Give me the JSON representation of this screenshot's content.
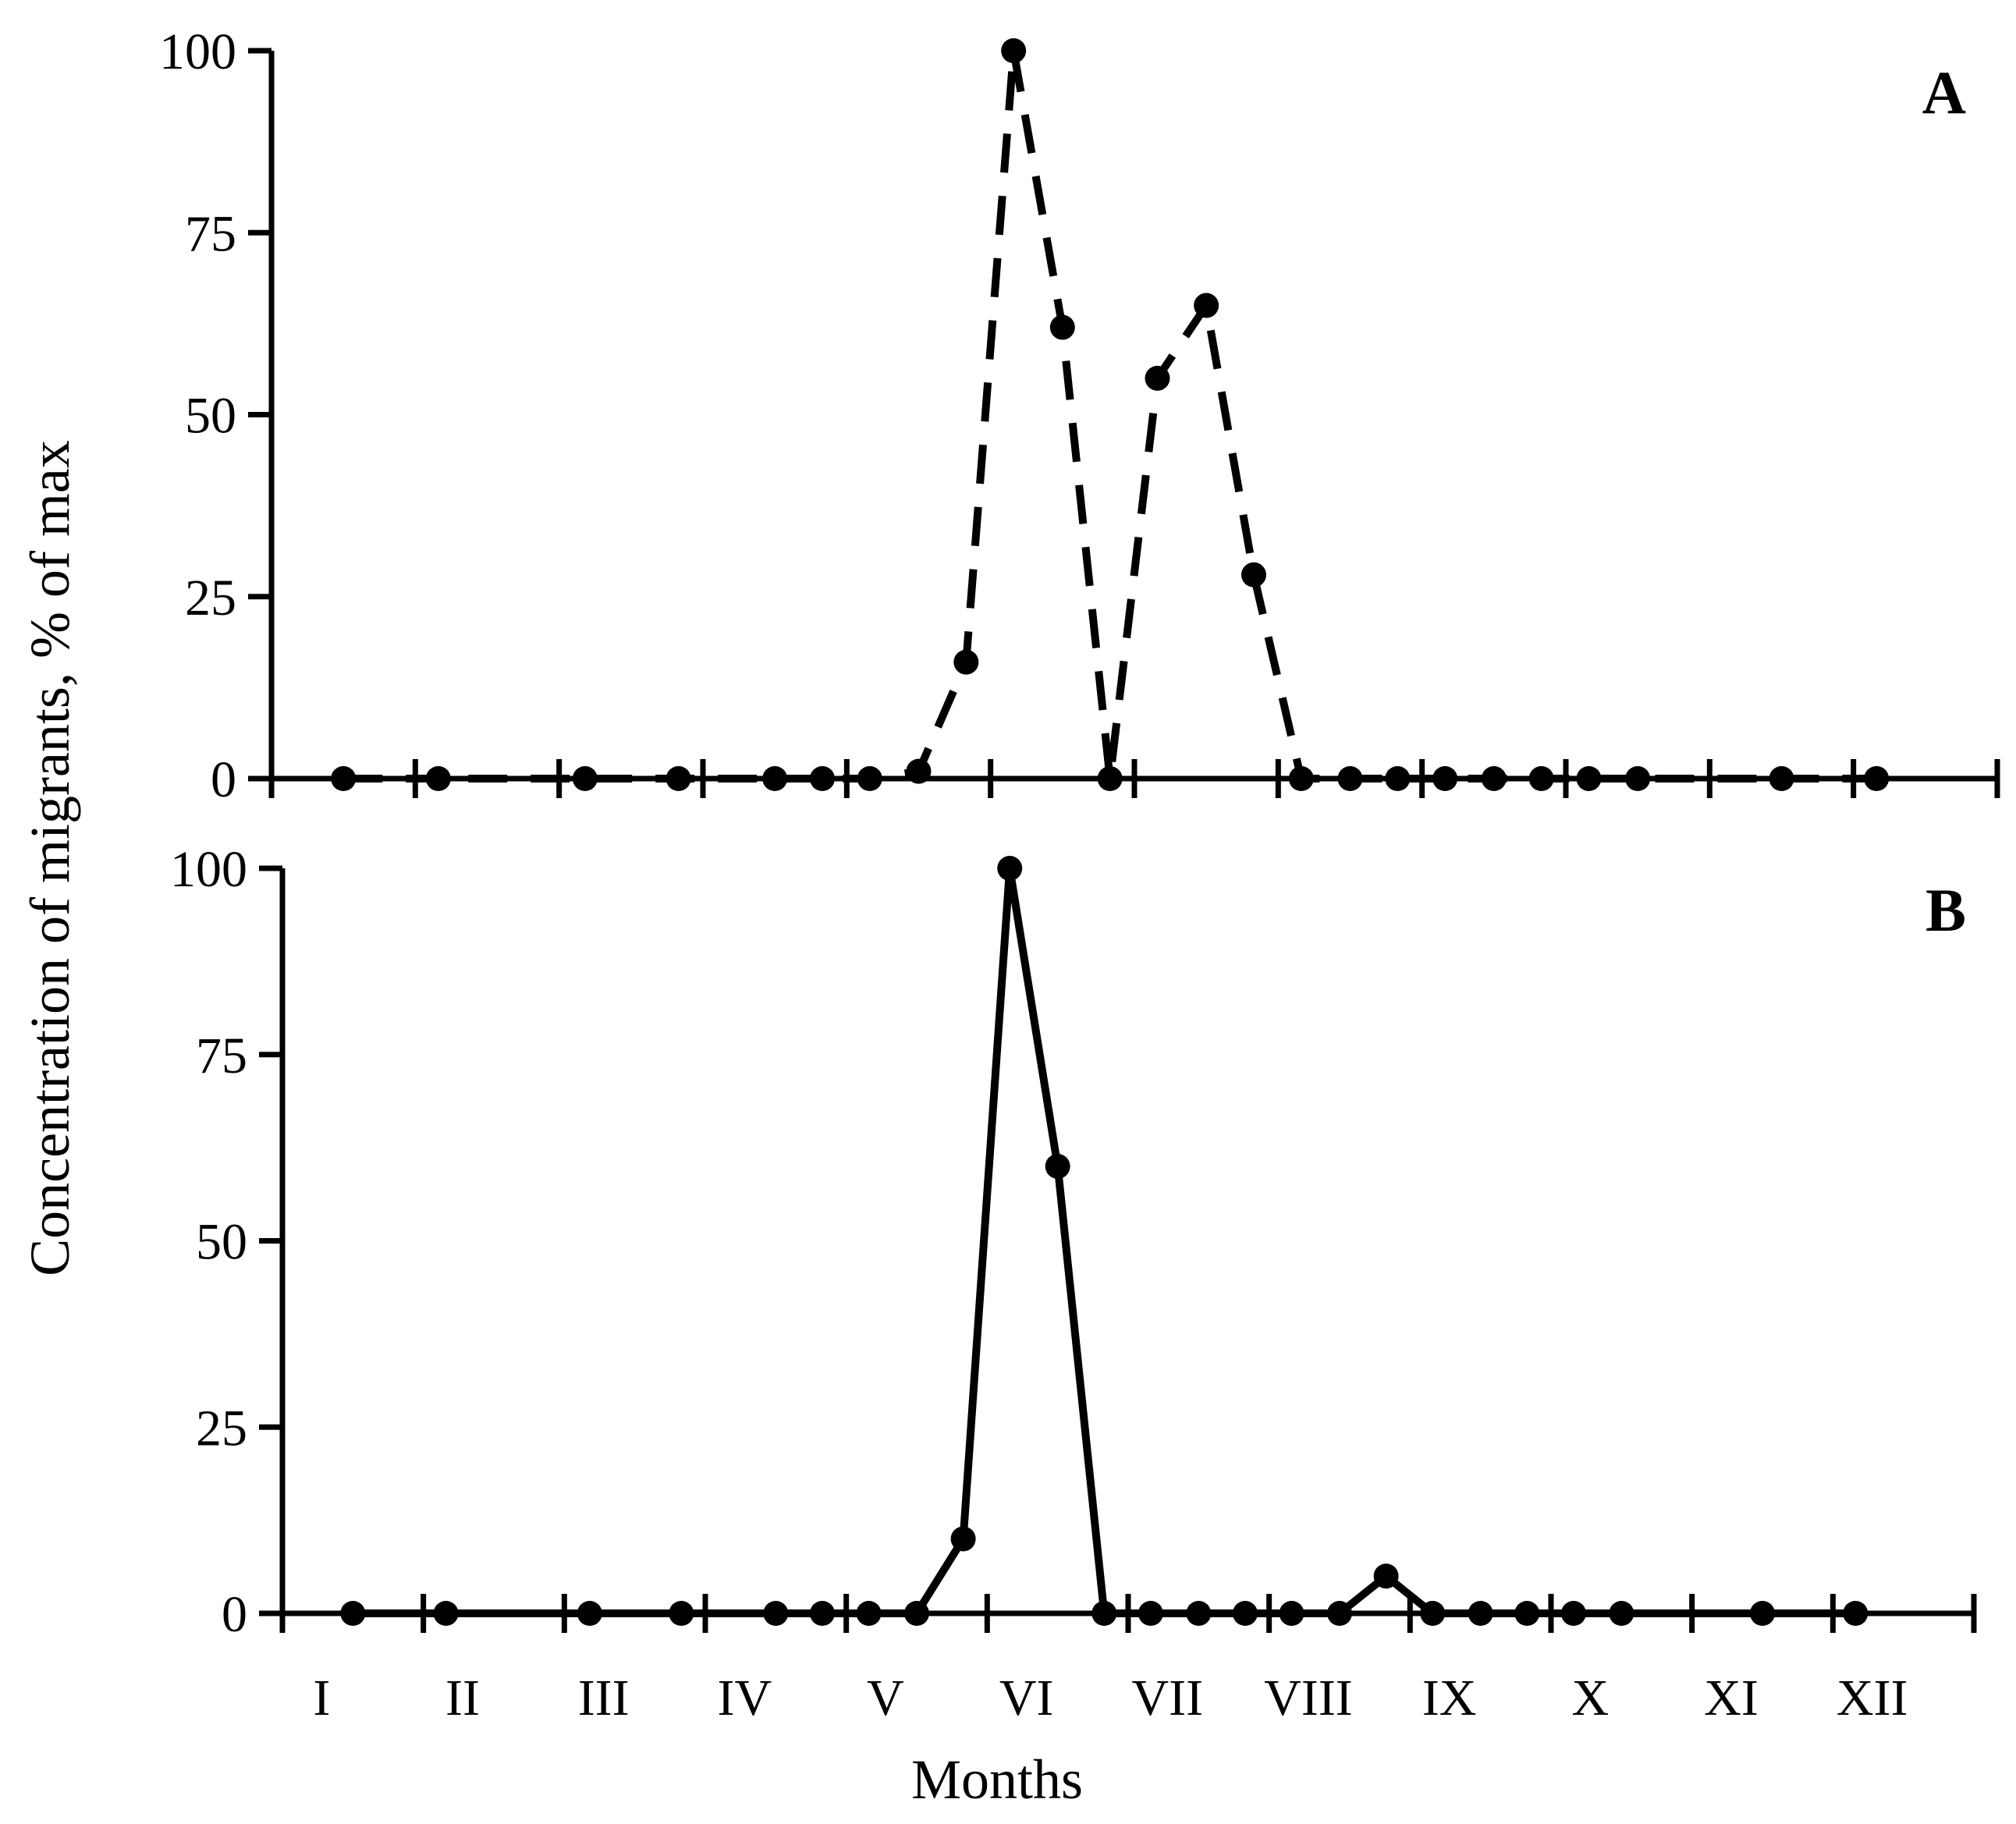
{
  "chart_data": [
    {
      "type": "line",
      "panel_label": "A",
      "line_style": "dashed",
      "ylim": [
        0,
        100
      ],
      "yticks": [
        "0",
        "25",
        "50",
        "75",
        "100"
      ],
      "xlim": [
        0,
        12
      ],
      "x_categories": [
        "I",
        "II",
        "III",
        "IV",
        "V",
        "VI",
        "VII",
        "VIII",
        "IX",
        "X",
        "XI",
        "XII"
      ],
      "series": [
        {
          "x": [
            0.5,
            1.16,
            2.18,
            2.83,
            3.5,
            3.83,
            4.16,
            4.5,
            4.83,
            5.16,
            5.5,
            5.83,
            6.16,
            6.5,
            6.83,
            7.16,
            7.5,
            7.83,
            8.16,
            8.5,
            8.83,
            9.16,
            9.5,
            10.5,
            11.16
          ],
          "y": [
            0,
            0,
            0,
            0,
            0,
            0,
            0,
            1,
            16,
            100,
            62,
            0,
            55,
            65,
            28,
            0,
            0,
            0,
            0,
            0,
            0,
            0,
            0,
            0,
            0
          ]
        }
      ]
    },
    {
      "type": "line",
      "panel_label": "B",
      "line_style": "solid",
      "ylim": [
        0,
        100
      ],
      "yticks": [
        "0",
        "25",
        "50",
        "75",
        "100"
      ],
      "xlim": [
        0,
        12
      ],
      "x_categories": [
        "I",
        "II",
        "III",
        "IV",
        "V",
        "VI",
        "VII",
        "VIII",
        "IX",
        "X",
        "XI",
        "XII"
      ],
      "series": [
        {
          "x": [
            0.5,
            1.16,
            2.18,
            2.83,
            3.5,
            3.83,
            4.16,
            4.5,
            4.83,
            5.16,
            5.5,
            5.83,
            6.16,
            6.5,
            6.83,
            7.16,
            7.5,
            7.83,
            8.16,
            8.5,
            8.83,
            9.16,
            9.5,
            10.5,
            11.16
          ],
          "y": [
            0,
            0,
            0,
            0,
            0,
            0,
            0,
            0,
            10,
            100,
            60,
            0,
            0,
            0,
            0,
            0,
            0,
            5,
            0,
            0,
            0,
            0,
            0,
            0,
            0
          ]
        }
      ]
    }
  ],
  "xlabel": "Months",
  "ylabel": "Concentration of migrants, % of max"
}
